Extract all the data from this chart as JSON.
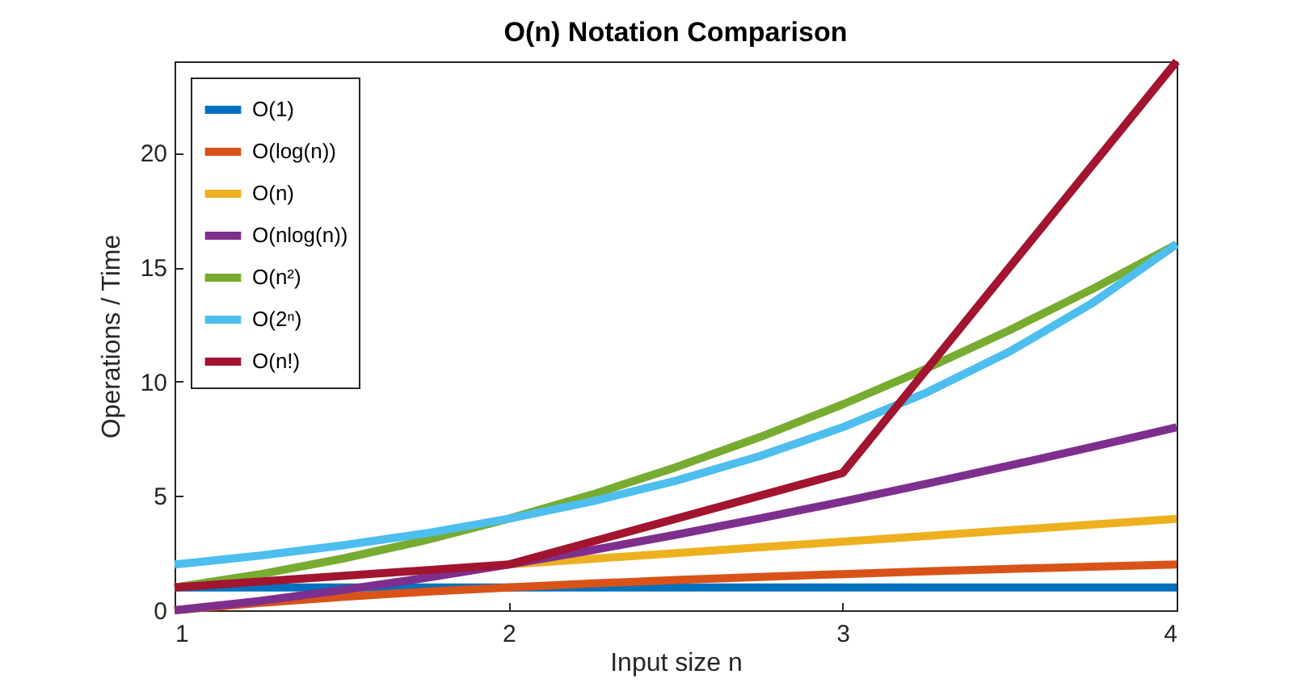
{
  "chart_data": {
    "type": "line",
    "title": "O(n) Notation Comparison",
    "xlabel": "Input size n",
    "ylabel": "Operations / Time",
    "x": [
      1,
      1.25,
      1.5,
      1.75,
      2,
      2.25,
      2.5,
      2.75,
      3,
      3.25,
      3.5,
      3.75,
      4
    ],
    "series": [
      {
        "name": "O(1)",
        "color": "#0072bd",
        "values": [
          1,
          1,
          1,
          1,
          1,
          1,
          1,
          1,
          1,
          1,
          1,
          1,
          1
        ]
      },
      {
        "name": "O(log(n))",
        "color": "#d95319",
        "values": [
          0,
          0.32,
          0.58,
          0.81,
          1,
          1.17,
          1.32,
          1.46,
          1.58,
          1.7,
          1.81,
          1.91,
          2
        ]
      },
      {
        "name": "O(n)",
        "color": "#edb120",
        "values": [
          null,
          null,
          null,
          null,
          2,
          2.25,
          2.5,
          2.75,
          3,
          3.25,
          3.5,
          3.75,
          4
        ]
      },
      {
        "name": "O(nlog(n))",
        "color": "#7e2f8e",
        "values": [
          0,
          0.4,
          0.88,
          1.41,
          2,
          2.63,
          3.3,
          4.01,
          4.75,
          5.53,
          6.33,
          7.15,
          8
        ]
      },
      {
        "name": "O(n²)",
        "color": "#77ac30",
        "values": [
          1,
          1.56,
          2.25,
          3.06,
          4,
          5.06,
          6.25,
          7.56,
          9,
          10.56,
          12.25,
          14.06,
          16
        ]
      },
      {
        "name": "O(2ⁿ)",
        "color": "#4dbeee",
        "values": [
          2,
          2.38,
          2.83,
          3.36,
          4,
          4.76,
          5.66,
          6.73,
          8,
          9.51,
          11.31,
          13.45,
          16
        ]
      },
      {
        "name": "O(n!)",
        "color": "#a2142f",
        "x": [
          1,
          2,
          3,
          4
        ],
        "values": [
          1,
          2,
          6,
          24
        ]
      }
    ],
    "xlim": [
      1,
      4
    ],
    "xticks": [
      1,
      2,
      3,
      4
    ],
    "ylim": [
      0,
      24
    ],
    "yticks": [
      0,
      5,
      10,
      15,
      20
    ],
    "grid": false,
    "legend": "top left",
    "line_style": "solid",
    "marker": "none"
  }
}
